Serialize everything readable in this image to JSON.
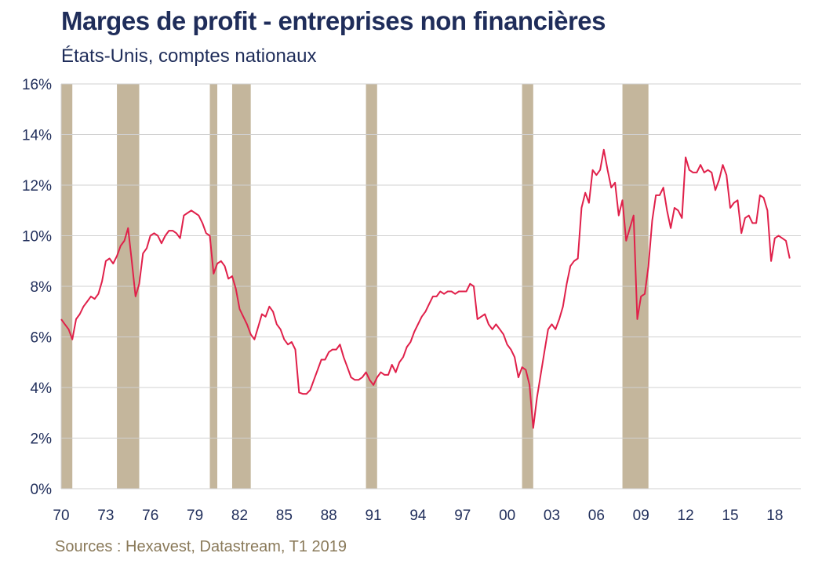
{
  "header": {
    "title": "Marges de profit - entreprises non financières",
    "subtitle": "États-Unis, comptes nationaux"
  },
  "footer": {
    "source": "Sources : Hexavest, Datastream, T1 2019"
  },
  "colors": {
    "line": "#e0204a",
    "recession": "#c4b69c",
    "grid": "#d0d0d0",
    "text": "#1f2d5a"
  },
  "chart_data": {
    "type": "line",
    "title": "Marges de profit - entreprises non financières",
    "subtitle": "États-Unis, comptes nationaux",
    "xlabel": "",
    "ylabel": "",
    "x_ticks": [
      "70",
      "73",
      "76",
      "79",
      "82",
      "85",
      "88",
      "91",
      "94",
      "97",
      "00",
      "03",
      "06",
      "09",
      "12",
      "15",
      "18"
    ],
    "y_ticks": [
      "0%",
      "2%",
      "4%",
      "6%",
      "8%",
      "10%",
      "12%",
      "14%",
      "16%"
    ],
    "ylim": [
      0,
      16
    ],
    "grid": true,
    "frequency": "quarterly",
    "x_start": "1970 T1",
    "x_end": "2019 T1",
    "shaded_periods": [
      {
        "start": 1970.0,
        "end": 1970.75
      },
      {
        "start": 1973.75,
        "end": 1975.25
      },
      {
        "start": 1980.0,
        "end": 1980.5
      },
      {
        "start": 1981.5,
        "end": 1982.75
      },
      {
        "start": 1990.5,
        "end": 1991.25
      },
      {
        "start": 2001.0,
        "end": 2001.75
      },
      {
        "start": 2007.75,
        "end": 2009.5
      }
    ],
    "series": [
      {
        "values": [
          6.7,
          6.5,
          6.3,
          5.9,
          6.7,
          6.9,
          7.2,
          7.4,
          7.6,
          7.5,
          7.7,
          8.2,
          9.0,
          9.1,
          8.9,
          9.2,
          9.6,
          9.8,
          10.3,
          9.0,
          7.6,
          8.1,
          9.3,
          9.5,
          10.0,
          10.1,
          10.0,
          9.7,
          10.0,
          10.2,
          10.2,
          10.1,
          9.9,
          10.8,
          10.9,
          11.0,
          10.9,
          10.8,
          10.5,
          10.1,
          10.0,
          8.5,
          8.9,
          9.0,
          8.8,
          8.3,
          8.4,
          7.9,
          7.1,
          6.8,
          6.5,
          6.1,
          5.9,
          6.4,
          6.9,
          6.8,
          7.2,
          7.0,
          6.5,
          6.3,
          5.9,
          5.7,
          5.8,
          5.5,
          3.8,
          3.75,
          3.75,
          3.9,
          4.3,
          4.7,
          5.1,
          5.1,
          5.4,
          5.5,
          5.5,
          5.7,
          5.2,
          4.8,
          4.4,
          4.3,
          4.3,
          4.4,
          4.6,
          4.3,
          4.1,
          4.4,
          4.6,
          4.5,
          4.5,
          4.9,
          4.6,
          5.0,
          5.2,
          5.6,
          5.8,
          6.2,
          6.5,
          6.8,
          7.0,
          7.3,
          7.6,
          7.6,
          7.8,
          7.7,
          7.8,
          7.8,
          7.7,
          7.8,
          7.8,
          7.8,
          8.1,
          8.0,
          6.7,
          6.8,
          6.9,
          6.5,
          6.3,
          6.5,
          6.3,
          6.1,
          5.7,
          5.5,
          5.2,
          4.4,
          4.8,
          4.7,
          4.1,
          2.4,
          3.6,
          4.5,
          5.4,
          6.3,
          6.5,
          6.3,
          6.7,
          7.2,
          8.1,
          8.8,
          9.0,
          9.1,
          11.1,
          11.7,
          11.3,
          12.6,
          12.4,
          12.6,
          13.4,
          12.6,
          11.9,
          12.1,
          10.8,
          11.4,
          9.8,
          10.3,
          10.8,
          6.7,
          7.6,
          7.7,
          8.8,
          10.6,
          11.6,
          11.6,
          11.9,
          11.0,
          10.3,
          11.1,
          11.0,
          10.7,
          13.1,
          12.6,
          12.5,
          12.5,
          12.8,
          12.5,
          12.6,
          12.5,
          11.8,
          12.2,
          12.8,
          12.4,
          11.1,
          11.3,
          11.4,
          10.1,
          10.7,
          10.8,
          10.5,
          10.5,
          11.6,
          11.5,
          11.0,
          9.0,
          9.9,
          10.0,
          9.9,
          9.8,
          9.1
        ]
      }
    ]
  }
}
